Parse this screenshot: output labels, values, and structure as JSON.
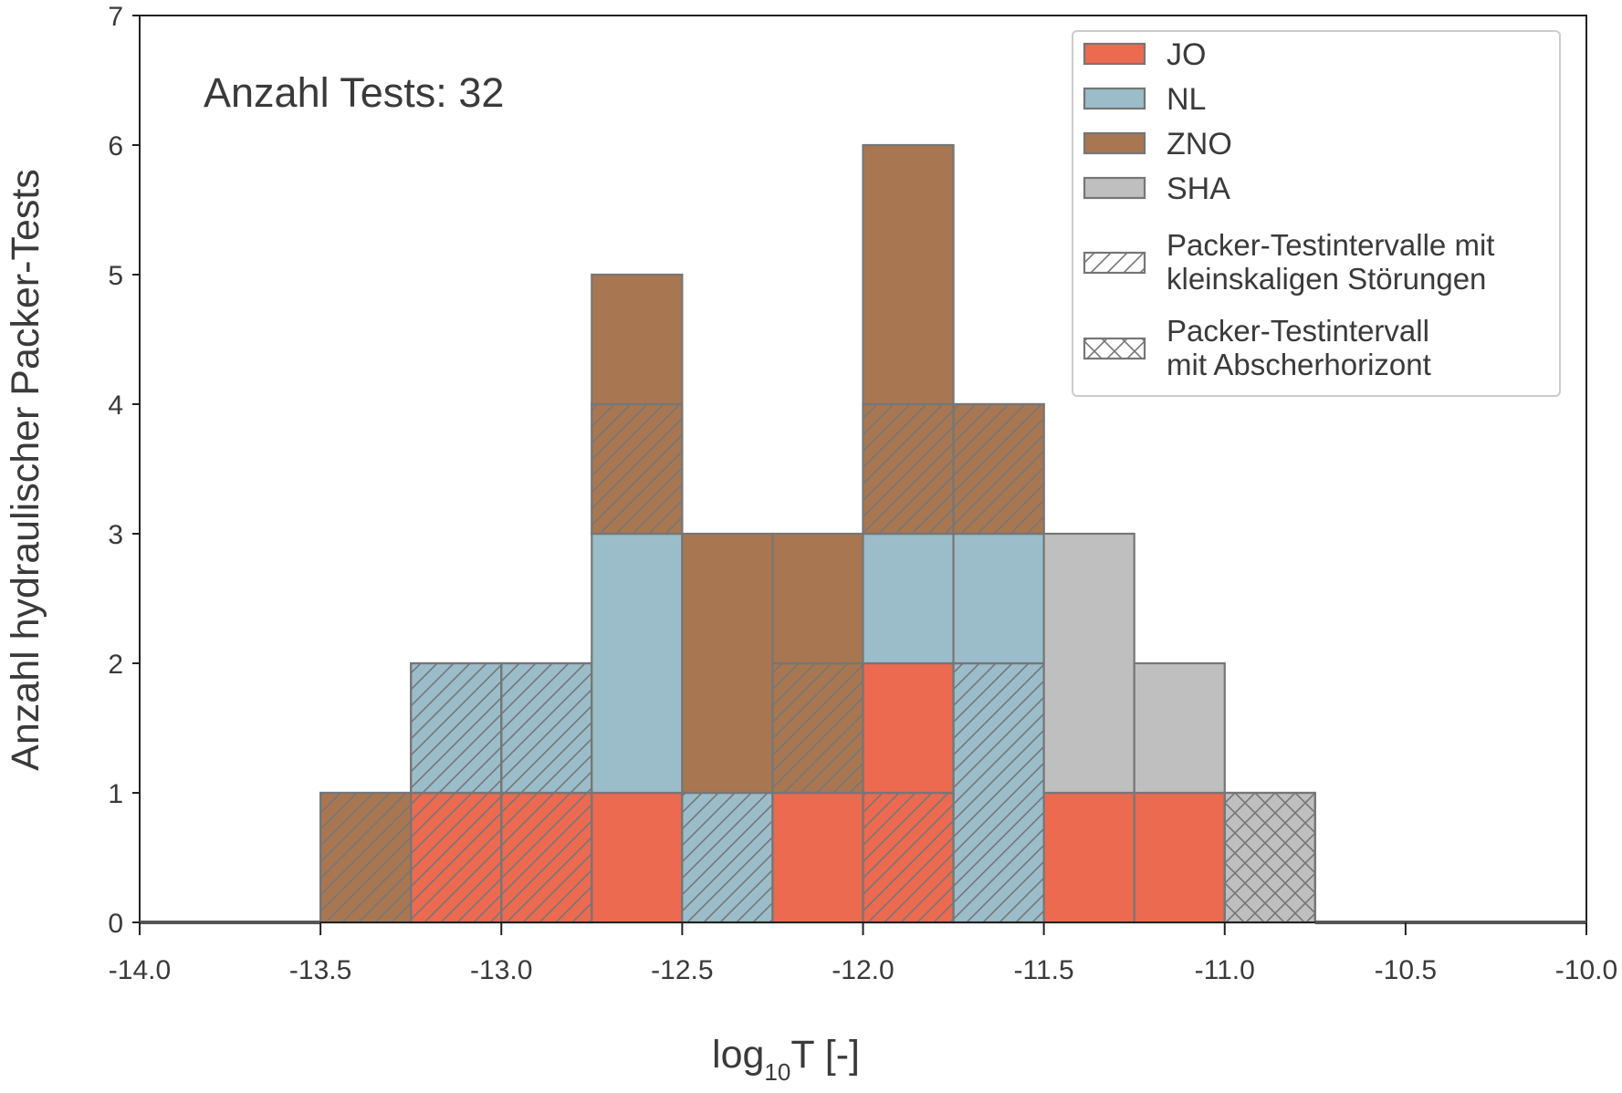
{
  "chart_data": {
    "type": "bar",
    "subtype": "stacked-histogram",
    "title": "",
    "annotation": "Anzahl Tests: 32",
    "xlabel_main": "log",
    "xlabel_sub": "10",
    "xlabel_rest": "T [-]",
    "ylabel": "Anzahl hydraulischer Packer-Tests",
    "xlim": [
      -14.0,
      -10.0
    ],
    "ylim": [
      0,
      7
    ],
    "bin_width": 0.25,
    "xticks": [
      -14.0,
      -13.5,
      -13.0,
      -12.5,
      -12.0,
      -11.5,
      -11.0,
      -10.5,
      -10.0
    ],
    "xtick_labels": [
      "-14.0",
      "-13.5",
      "-13.0",
      "-12.5",
      "-12.0",
      "-11.5",
      "-11.0",
      "-10.5",
      "-10.0"
    ],
    "yticks": [
      0,
      1,
      2,
      3,
      4,
      5,
      6,
      7
    ],
    "ytick_labels": [
      "0",
      "1",
      "2",
      "3",
      "4",
      "5",
      "6",
      "7"
    ],
    "grid": false,
    "legend_position": "top-right",
    "groups": [
      {
        "name": "JO",
        "color": "#EC6A50"
      },
      {
        "name": "NL",
        "color": "#9BBDCA"
      },
      {
        "name": "ZNO",
        "color": "#A87751"
      },
      {
        "name": "SHA",
        "color": "#BFBFBF"
      }
    ],
    "pattern_legend": [
      {
        "pattern": "hatch",
        "line1": "Packer-Testintervalle mit",
        "line2": "kleinskaligen Störungen"
      },
      {
        "pattern": "cross",
        "line1": "Packer-Testintervall",
        "line2": "mit Abscherhorizont"
      }
    ],
    "edge_color": "#767676",
    "bins": [
      {
        "x0": -13.5,
        "segments": [
          {
            "group": "ZNO",
            "count": 1,
            "pattern": "hatch"
          }
        ]
      },
      {
        "x0": -13.25,
        "segments": [
          {
            "group": "JO",
            "count": 1,
            "pattern": "hatch"
          },
          {
            "group": "NL",
            "count": 1,
            "pattern": "hatch"
          }
        ]
      },
      {
        "x0": -13.0,
        "segments": [
          {
            "group": "JO",
            "count": 1,
            "pattern": "hatch"
          },
          {
            "group": "NL",
            "count": 1,
            "pattern": "hatch"
          }
        ]
      },
      {
        "x0": -12.75,
        "segments": [
          {
            "group": "JO",
            "count": 1,
            "pattern": "none"
          },
          {
            "group": "NL",
            "count": 2,
            "pattern": "none"
          },
          {
            "group": "ZNO",
            "count": 1,
            "pattern": "hatch"
          },
          {
            "group": "ZNO",
            "count": 1,
            "pattern": "none"
          }
        ]
      },
      {
        "x0": -12.5,
        "segments": [
          {
            "group": "NL",
            "count": 1,
            "pattern": "hatch"
          },
          {
            "group": "ZNO",
            "count": 2,
            "pattern": "none"
          }
        ]
      },
      {
        "x0": -12.25,
        "segments": [
          {
            "group": "JO",
            "count": 1,
            "pattern": "none"
          },
          {
            "group": "ZNO",
            "count": 1,
            "pattern": "hatch"
          },
          {
            "group": "ZNO",
            "count": 1,
            "pattern": "none"
          }
        ]
      },
      {
        "x0": -12.0,
        "segments": [
          {
            "group": "JO",
            "count": 1,
            "pattern": "hatch"
          },
          {
            "group": "JO",
            "count": 1,
            "pattern": "none"
          },
          {
            "group": "NL",
            "count": 1,
            "pattern": "none"
          },
          {
            "group": "ZNO",
            "count": 1,
            "pattern": "hatch"
          },
          {
            "group": "ZNO",
            "count": 2,
            "pattern": "none"
          }
        ]
      },
      {
        "x0": -11.75,
        "segments": [
          {
            "group": "NL",
            "count": 2,
            "pattern": "hatch"
          },
          {
            "group": "NL",
            "count": 1,
            "pattern": "none"
          },
          {
            "group": "ZNO",
            "count": 1,
            "pattern": "hatch"
          }
        ]
      },
      {
        "x0": -11.5,
        "segments": [
          {
            "group": "JO",
            "count": 1,
            "pattern": "none"
          },
          {
            "group": "SHA",
            "count": 2,
            "pattern": "none"
          }
        ]
      },
      {
        "x0": -11.25,
        "segments": [
          {
            "group": "JO",
            "count": 1,
            "pattern": "none"
          },
          {
            "group": "SHA",
            "count": 1,
            "pattern": "none"
          }
        ]
      },
      {
        "x0": -11.0,
        "segments": [
          {
            "group": "SHA",
            "count": 1,
            "pattern": "cross"
          }
        ]
      }
    ]
  }
}
